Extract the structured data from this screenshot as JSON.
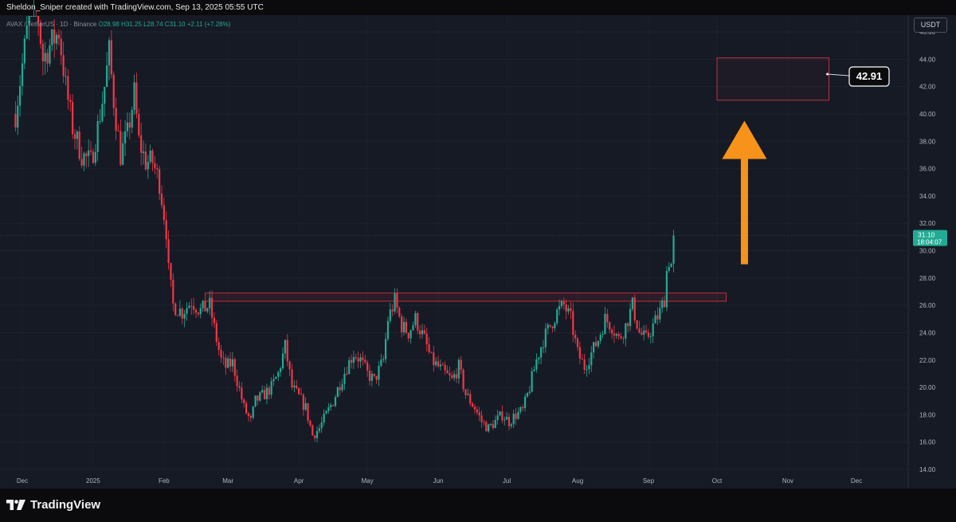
{
  "header": {
    "creator_line": "Sheldon_Sniper created with TradingView.com, Sep 13, 2025 05:55 UTC"
  },
  "legend": {
    "symbol": "AVAX / TetherUS · 1D · Binance",
    "ohlc": "O28.98 H31.25 L28.74 C31.10 +2.11 (+7.28%)"
  },
  "currency": "USDT",
  "price_tag": {
    "price": "31.10",
    "countdown": "18:04:07",
    "color": "#22ab94"
  },
  "target_label": "42.91",
  "brand": "TradingView",
  "colors": {
    "up": "#22ab94",
    "down": "#f23645",
    "zone": "#c0303e",
    "arrow": "#f7931a",
    "background": "#161a25"
  },
  "chart_data": {
    "type": "candlestick",
    "title": "AVAX / TetherUS · 1D · Binance",
    "x_ticks": [
      {
        "label": "Dec",
        "date": "2024-12-01"
      },
      {
        "label": "2025",
        "date": "2025-01-01"
      },
      {
        "label": "Feb",
        "date": "2025-02-01"
      },
      {
        "label": "Mar",
        "date": "2025-03-01"
      },
      {
        "label": "Apr",
        "date": "2025-04-01"
      },
      {
        "label": "May",
        "date": "2025-05-01"
      },
      {
        "label": "Jun",
        "date": "2025-06-01"
      },
      {
        "label": "Jul",
        "date": "2025-07-01"
      },
      {
        "label": "Aug",
        "date": "2025-08-01"
      },
      {
        "label": "Sep",
        "date": "2025-09-01"
      },
      {
        "label": "Oct",
        "date": "2025-10-01"
      },
      {
        "label": "Nov",
        "date": "2025-11-01"
      },
      {
        "label": "Dec",
        "date": "2025-12-01"
      }
    ],
    "y_ticks": [
      "14.00",
      "16.00",
      "18.00",
      "20.00",
      "22.00",
      "24.00",
      "26.00",
      "28.00",
      "30.00",
      "32.00",
      "34.00",
      "36.00",
      "38.00",
      "40.00",
      "42.00",
      "44.00",
      "46.00"
    ],
    "y_range": [
      14,
      46
    ],
    "last_price": 31.1,
    "resistance_zone": {
      "start": "2025-02-19",
      "end": "2025-10-05",
      "low": 26.3,
      "high": 26.9
    },
    "target_zone": {
      "start": "2025-10-01",
      "end": "2025-11-19",
      "low": 41.0,
      "high": 44.1
    },
    "target_value": 42.91,
    "arrow": {
      "date": "2025-10-13",
      "from": 29.0,
      "to": 39.5
    },
    "close_path": [
      [
        "2024-11-28",
        40.0
      ],
      [
        "2024-12-03",
        46.0
      ],
      [
        "2024-12-06",
        50.0
      ],
      [
        "2024-12-10",
        44.0
      ],
      [
        "2024-12-13",
        45.0
      ],
      [
        "2024-12-17",
        46.0
      ],
      [
        "2024-12-20",
        42.0
      ],
      [
        "2024-12-23",
        39.0
      ],
      [
        "2024-12-27",
        37.0
      ],
      [
        "2024-12-31",
        36.5
      ],
      [
        "2025-01-03",
        39.0
      ],
      [
        "2025-01-06",
        42.0
      ],
      [
        "2025-01-08",
        44.5
      ],
      [
        "2025-01-10",
        41.0
      ],
      [
        "2025-01-13",
        37.0
      ],
      [
        "2025-01-16",
        38.5
      ],
      [
        "2025-01-19",
        41.5
      ],
      [
        "2025-01-21",
        38.0
      ],
      [
        "2025-01-24",
        36.5
      ],
      [
        "2025-01-27",
        36.5
      ],
      [
        "2025-01-30",
        35.0
      ],
      [
        "2025-02-02",
        31.5
      ],
      [
        "2025-02-03",
        28.5
      ],
      [
        "2025-02-05",
        26.0
      ],
      [
        "2025-02-09",
        25.5
      ],
      [
        "2025-02-13",
        26.3
      ],
      [
        "2025-02-17",
        25.6
      ],
      [
        "2025-02-21",
        26.0
      ],
      [
        "2025-02-24",
        23.5
      ],
      [
        "2025-02-26",
        22.0
      ],
      [
        "2025-02-28",
        21.5
      ],
      [
        "2025-03-03",
        21.8
      ],
      [
        "2025-03-05",
        20.5
      ],
      [
        "2025-03-08",
        18.5
      ],
      [
        "2025-03-11",
        17.5
      ],
      [
        "2025-03-13",
        19.0
      ],
      [
        "2025-03-17",
        19.5
      ],
      [
        "2025-03-20",
        20.0
      ],
      [
        "2025-03-23",
        21.0
      ],
      [
        "2025-03-26",
        23.0
      ],
      [
        "2025-03-29",
        20.0
      ],
      [
        "2025-04-01",
        19.3
      ],
      [
        "2025-04-04",
        18.5
      ],
      [
        "2025-04-07",
        16.5
      ],
      [
        "2025-04-10",
        17.0
      ],
      [
        "2025-04-13",
        18.0
      ],
      [
        "2025-04-16",
        19.0
      ],
      [
        "2025-04-19",
        20.3
      ],
      [
        "2025-04-22",
        21.5
      ],
      [
        "2025-04-25",
        22.5
      ],
      [
        "2025-04-28",
        22.0
      ],
      [
        "2025-05-01",
        21.0
      ],
      [
        "2025-05-04",
        20.5
      ],
      [
        "2025-05-08",
        22.0
      ],
      [
        "2025-05-10",
        25.0
      ],
      [
        "2025-05-13",
        26.3
      ],
      [
        "2025-05-16",
        24.5
      ],
      [
        "2025-05-19",
        24.0
      ],
      [
        "2025-05-22",
        25.0
      ],
      [
        "2025-05-26",
        23.5
      ],
      [
        "2025-05-29",
        22.0
      ],
      [
        "2025-06-01",
        21.5
      ],
      [
        "2025-06-04",
        21.0
      ],
      [
        "2025-06-07",
        20.5
      ],
      [
        "2025-06-10",
        21.5
      ],
      [
        "2025-06-13",
        19.5
      ],
      [
        "2025-06-17",
        18.5
      ],
      [
        "2025-06-20",
        17.5
      ],
      [
        "2025-06-23",
        17.0
      ],
      [
        "2025-06-26",
        17.5
      ],
      [
        "2025-06-29",
        18.0
      ],
      [
        "2025-07-02",
        17.5
      ],
      [
        "2025-07-05",
        18.0
      ],
      [
        "2025-07-08",
        18.3
      ],
      [
        "2025-07-11",
        20.0
      ],
      [
        "2025-07-14",
        22.0
      ],
      [
        "2025-07-17",
        23.5
      ],
      [
        "2025-07-20",
        24.5
      ],
      [
        "2025-07-23",
        25.5
      ],
      [
        "2025-07-26",
        26.0
      ],
      [
        "2025-07-29",
        25.0
      ],
      [
        "2025-08-01",
        22.5
      ],
      [
        "2025-08-04",
        21.5
      ],
      [
        "2025-08-07",
        22.5
      ],
      [
        "2025-08-10",
        23.5
      ],
      [
        "2025-08-13",
        25.0
      ],
      [
        "2025-08-16",
        24.5
      ],
      [
        "2025-08-19",
        23.5
      ],
      [
        "2025-08-22",
        24.5
      ],
      [
        "2025-08-25",
        26.0
      ],
      [
        "2025-08-28",
        24.0
      ],
      [
        "2025-08-31",
        23.5
      ],
      [
        "2025-09-03",
        24.5
      ],
      [
        "2025-09-06",
        25.5
      ],
      [
        "2025-09-08",
        26.5
      ],
      [
        "2025-09-09",
        28.5
      ],
      [
        "2025-09-10",
        29.3
      ],
      [
        "2025-09-11",
        29.0
      ],
      [
        "2025-09-12",
        31.1
      ]
    ]
  }
}
